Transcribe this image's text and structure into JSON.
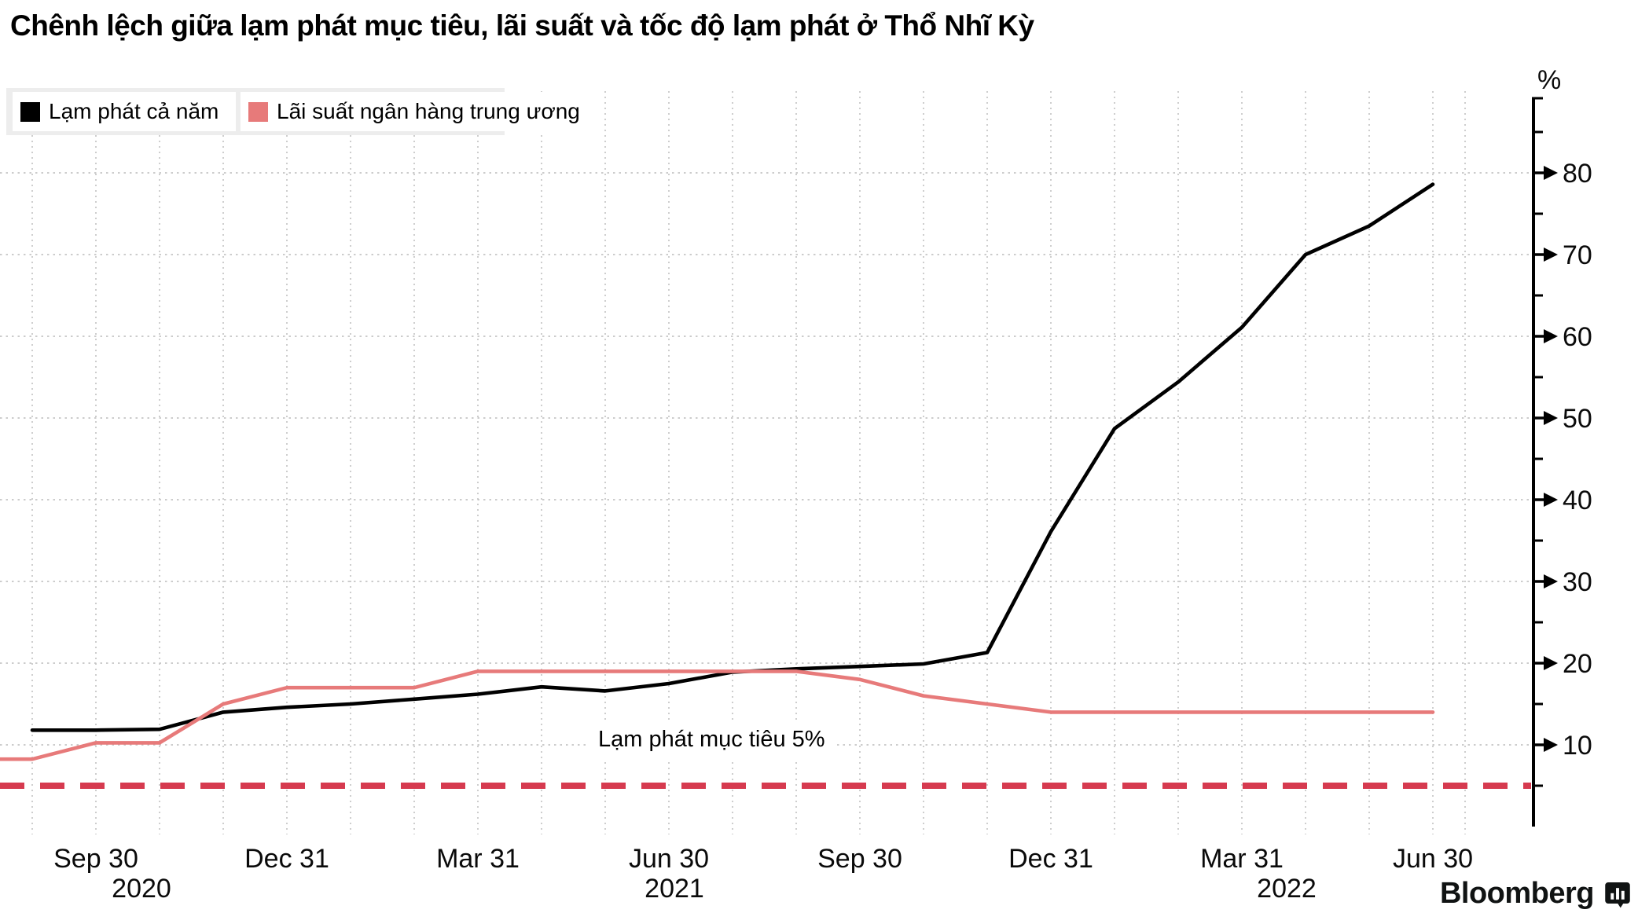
{
  "title": "Chênh lệch giữa lạm phát mục tiêu, lãi suất và tốc độ lạm phát ở Thổ Nhĩ Kỳ",
  "legend": [
    {
      "label": "Lạm phát cả năm",
      "color": "#000000"
    },
    {
      "label": "Lãi suất ngân hàng trung ương",
      "color": "#e77a7a"
    }
  ],
  "branding": {
    "logo_text": "Bloomberg"
  },
  "colors": {
    "inflation_line": "#000000",
    "rate_line": "#e77a7a",
    "target_line": "#d63a4f",
    "gridline": "#c5c5c5",
    "legend_band": "#ededed",
    "background": "#ffffff"
  },
  "chart_data": {
    "type": "line",
    "title": "Chênh lệch giữa lạm phát mục tiêu, lãi suất và tốc độ lạm phát ở Thổ Nhĩ Kỳ",
    "x_months": [
      "Jul 2020",
      "Aug 2020",
      "Sep 2020",
      "Oct 2020",
      "Nov 2020",
      "Dec 2020",
      "Jan 2021",
      "Feb 2021",
      "Mar 2021",
      "Apr 2021",
      "May 2021",
      "Jun 2021",
      "Jul 2021",
      "Aug 2021",
      "Sep 2021",
      "Oct 2021",
      "Nov 2021",
      "Dec 2021",
      "Jan 2022",
      "Feb 2022",
      "Mar 2022",
      "Apr 2022",
      "May 2022",
      "Jun 2022"
    ],
    "series": [
      {
        "name": "Lạm phát cả năm",
        "color": "#000000",
        "values": [
          null,
          11.8,
          11.8,
          11.9,
          14.0,
          14.6,
          15.0,
          15.6,
          16.2,
          17.1,
          16.6,
          17.5,
          18.9,
          19.3,
          19.6,
          19.9,
          21.3,
          36.1,
          48.7,
          54.4,
          61.1,
          70.0,
          73.5,
          78.6
        ]
      },
      {
        "name": "Lãi suất ngân hàng trung ương",
        "color": "#e77a7a",
        "values": [
          8.25,
          8.25,
          10.25,
          10.25,
          15,
          17,
          17,
          17,
          19,
          19,
          19,
          19,
          19,
          19,
          18,
          16,
          15,
          14,
          14,
          14,
          14,
          14,
          14,
          14
        ]
      }
    ],
    "target_line": {
      "value": 5,
      "label": "Lạm phát mục tiêu 5%",
      "color": "#d63a4f"
    },
    "y_axis": {
      "unit": "%",
      "range": [
        0,
        89
      ],
      "major_ticks": [
        10,
        20,
        30,
        40,
        50,
        60,
        70,
        80
      ],
      "minor_ticks": [
        5,
        15,
        25,
        35,
        45,
        55,
        65,
        75,
        85
      ],
      "position": "right",
      "grid": true
    },
    "x_axis": {
      "grid": "monthly-dotted",
      "quarter_ticks": [
        {
          "text": "Sep 30",
          "month_index": 2
        },
        {
          "text": "Dec 31",
          "month_index": 5
        },
        {
          "text": "Mar 31",
          "month_index": 8
        },
        {
          "text": "Jun 30",
          "month_index": 11
        },
        {
          "text": "Sep 30",
          "month_index": 14
        },
        {
          "text": "Dec 31",
          "month_index": 17
        },
        {
          "text": "Mar 31",
          "month_index": 20
        },
        {
          "text": "Jun 30",
          "month_index": 23
        }
      ],
      "year_labels": [
        {
          "text": "2020",
          "month_index": 2,
          "dx": 58
        },
        {
          "text": "2021",
          "month_index": 11,
          "dx": 7
        },
        {
          "text": "2022",
          "month_index": 20,
          "dx": 57
        }
      ]
    },
    "legend_position": "top-left-inside"
  }
}
